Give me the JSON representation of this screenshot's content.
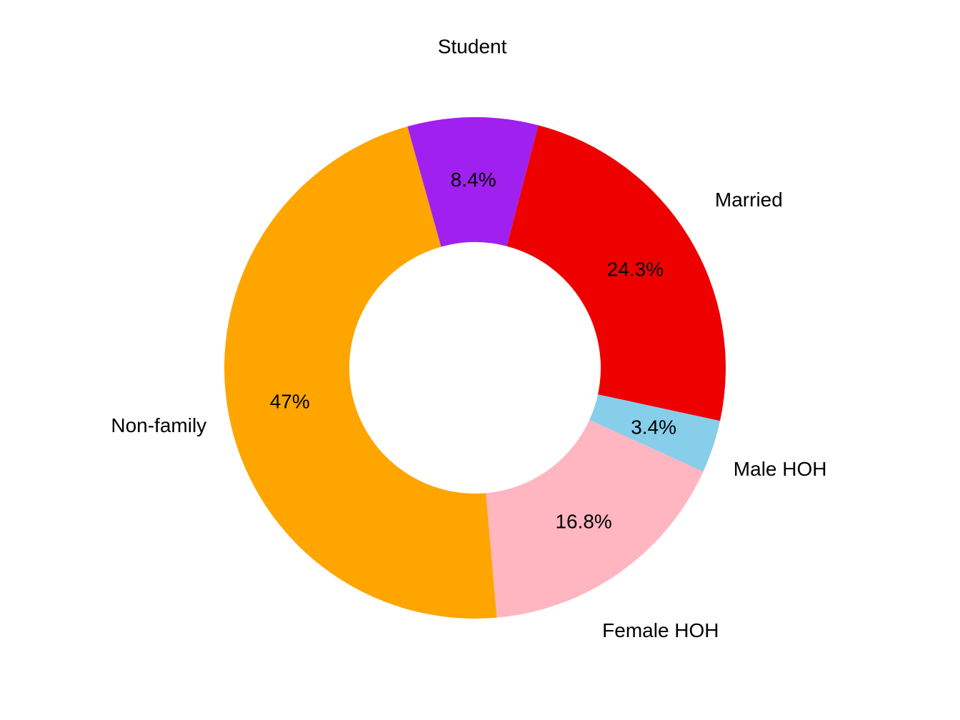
{
  "chart_data": {
    "type": "pie",
    "donut": true,
    "title": "",
    "categories": [
      "Non-family",
      "Student",
      "Married",
      "Male HOH",
      "Female HOH"
    ],
    "values": [
      47.0,
      8.4,
      24.3,
      3.4,
      16.8
    ],
    "value_labels": [
      "47%",
      "8.4%",
      "24.3%",
      "3.4%",
      "16.8%"
    ],
    "colors": [
      "#FFA500",
      "#A020F0",
      "#EE0000",
      "#87CEEB",
      "#FFB6C1"
    ],
    "legend": "none",
    "category_labels_outside": true,
    "value_labels_on_slices": true
  }
}
